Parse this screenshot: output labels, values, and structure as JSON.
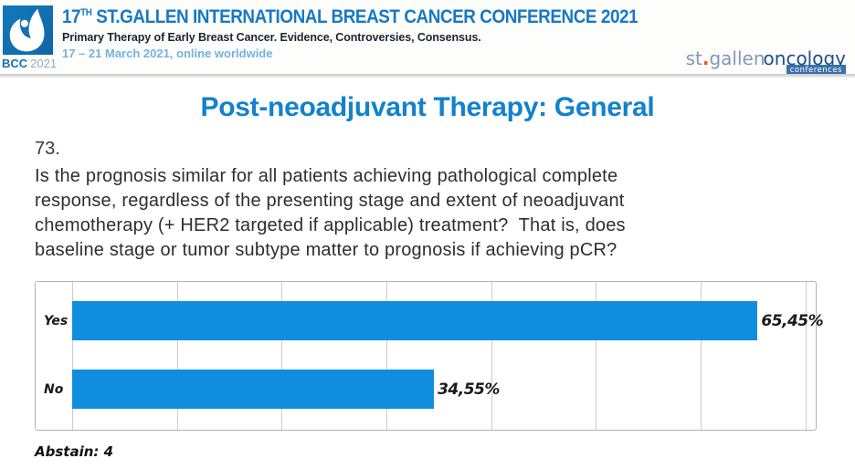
{
  "header": {
    "logo": {
      "bcc": "BCC",
      "year": "2021"
    },
    "title_prefix": "17",
    "title_sup": "TH",
    "title_rest": " ST.GALLEN INTERNATIONAL BREAST CANCER CONFERENCE 2021",
    "subtitle": "Primary Therapy of Early Breast Cancer. Evidence, Controversies, Consensus.",
    "date_line": "17 – 21 March 2021, online worldwide",
    "org_logo": {
      "st": "st",
      "dot": ".",
      "gallen": "gallen",
      "oncology": "oncology",
      "conferences": "conferences"
    }
  },
  "slide": {
    "title": "Post-neoadjuvant Therapy: General",
    "question_number": "73.",
    "question_lines": [
      "Is the prognosis similar for all patients achieving pathological complete",
      "response, regardless of the presenting stage and extent of neoadjuvant",
      "chemotherapy (+ HER2 targeted if applicable) treatment?  That is, does",
      "baseline stage or tumor subtype matter to prognosis if achieving pCR?"
    ],
    "abstain_note": "Abstain: 4"
  },
  "chart_data": {
    "type": "bar",
    "orientation": "horizontal",
    "title": "",
    "categories": [
      "Yes",
      "No"
    ],
    "values": [
      65.45,
      34.55
    ],
    "value_labels": [
      "65,45%",
      "34,55%"
    ],
    "xlim": [
      0,
      71
    ],
    "gridline_interval_percent": 10,
    "gridline_max_percent": 70,
    "grid": true,
    "legend": false,
    "bar_color": "#0f8ee0"
  },
  "colors": {
    "slide_title_blue": "#1282cd",
    "conference_title_blue": "#1779c4",
    "date_light_blue": "#74b3dc",
    "bar_blue": "#0f8ee0",
    "logo_square_blue": "#1173b5",
    "org_logo_gray_blue": "#8299b4",
    "org_logo_dark_blue": "#1d4e8c"
  }
}
